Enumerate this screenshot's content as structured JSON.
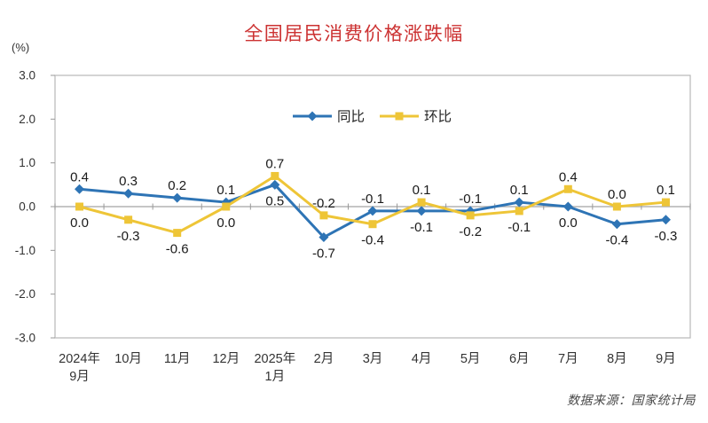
{
  "title": "全国居民消费价格涨跌幅",
  "unit_label": "(%)",
  "footer": "数据来源：国家统计局",
  "colors": {
    "title": "#cc3232",
    "yoy_line": "#2e74b5",
    "mom_line": "#eec537",
    "axis_line": "#b3b3b3",
    "plot_border": "#bcbcbc",
    "tick": "#999999",
    "axis_text": "#333333",
    "data_label_text": "#1a1a1a",
    "footer_text": "#4a4a4a"
  },
  "chart_data": {
    "type": "line",
    "title": "全国居民消费价格涨跌幅",
    "ylabel": "(%)",
    "ylim": [
      -3.0,
      3.0
    ],
    "yticks": [
      "3.0",
      "2.0",
      "1.0",
      "0.0",
      "-1.0",
      "-2.0",
      "-3.0"
    ],
    "ytick_values": [
      3.0,
      2.0,
      1.0,
      0.0,
      -1.0,
      -2.0,
      -3.0
    ],
    "grid": false,
    "legend_position": "top-center",
    "categories": [
      "2024年\n9月",
      "10月",
      "11月",
      "12月",
      "2025年\n1月",
      "2月",
      "3月",
      "4月",
      "5月",
      "6月",
      "7月",
      "8月",
      "9月"
    ],
    "series": [
      {
        "name": "同比",
        "marker": "diamond",
        "color": "#2e74b5",
        "values": [
          0.4,
          0.3,
          0.2,
          0.1,
          0.5,
          -0.7,
          -0.1,
          -0.1,
          -0.1,
          0.1,
          0.0,
          -0.4,
          -0.3
        ]
      },
      {
        "name": "环比",
        "marker": "square",
        "color": "#eec537",
        "values": [
          0.0,
          -0.3,
          -0.6,
          0.0,
          0.7,
          -0.2,
          -0.4,
          0.1,
          -0.2,
          -0.1,
          0.4,
          0.0,
          0.1
        ]
      }
    ],
    "source_note": "数据来源：国家统计局"
  }
}
